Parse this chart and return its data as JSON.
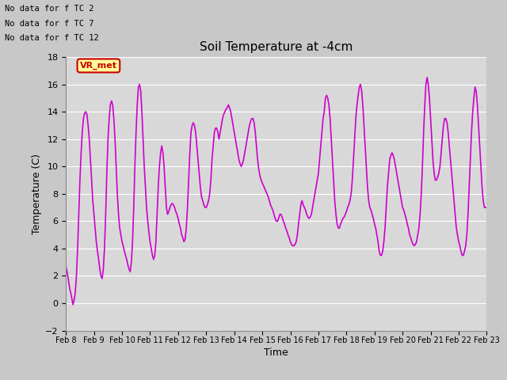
{
  "title": "Soil Temperature at -4cm",
  "xlabel": "Time",
  "ylabel": "Temperature (C)",
  "ylim": [
    -2,
    18
  ],
  "yticks": [
    -2,
    0,
    2,
    4,
    6,
    8,
    10,
    12,
    14,
    16,
    18
  ],
  "line_color": "#cc00cc",
  "line_width": 1.2,
  "fig_bg_color": "#c8c8c8",
  "plot_bg_color": "#d8d8d8",
  "legend_color": "#cc00cc",
  "no_data_texts": [
    "No data for f TC 2",
    "No data for f TC 7",
    "No data for f TC 12"
  ],
  "tooltip_text": "VR_met",
  "tooltip_bg": "#ffff99",
  "tooltip_border": "#cc0000",
  "tooltip_text_color": "#cc0000",
  "x_tick_labels": [
    "Feb 8",
    "Feb 9",
    "Feb 10",
    "Feb 11",
    "Feb 12",
    "Feb 13",
    "Feb 14",
    "Feb 15",
    "Feb 16",
    "Feb 17",
    "Feb 18",
    "Feb 19",
    "Feb 20",
    "Feb 21",
    "Feb 22",
    "Feb 23"
  ],
  "time_data": [
    0.0,
    0.042,
    0.083,
    0.125,
    0.167,
    0.208,
    0.25,
    0.292,
    0.333,
    0.375,
    0.417,
    0.458,
    0.5,
    0.542,
    0.583,
    0.625,
    0.667,
    0.708,
    0.75,
    0.792,
    0.833,
    0.875,
    0.917,
    0.958,
    1.0,
    1.042,
    1.083,
    1.125,
    1.167,
    1.208,
    1.25,
    1.292,
    1.333,
    1.375,
    1.417,
    1.458,
    1.5,
    1.542,
    1.583,
    1.625,
    1.667,
    1.708,
    1.75,
    1.792,
    1.833,
    1.875,
    1.917,
    1.958,
    2.0,
    2.042,
    2.083,
    2.125,
    2.167,
    2.208,
    2.25,
    2.292,
    2.333,
    2.375,
    2.417,
    2.458,
    2.5,
    2.542,
    2.583,
    2.625,
    2.667,
    2.708,
    2.75,
    2.792,
    2.833,
    2.875,
    2.917,
    2.958,
    3.0,
    3.042,
    3.083,
    3.125,
    3.167,
    3.208,
    3.25,
    3.292,
    3.333,
    3.375,
    3.417,
    3.458,
    3.5,
    3.542,
    3.583,
    3.625,
    3.667,
    3.708,
    3.75,
    3.792,
    3.833,
    3.875,
    3.917,
    3.958,
    4.0,
    4.042,
    4.083,
    4.125,
    4.167,
    4.208,
    4.25,
    4.292,
    4.333,
    4.375,
    4.417,
    4.458,
    4.5,
    4.542,
    4.583,
    4.625,
    4.667,
    4.708,
    4.75,
    4.792,
    4.833,
    4.875,
    4.917,
    4.958,
    5.0,
    5.042,
    5.083,
    5.125,
    5.167,
    5.208,
    5.25,
    5.292,
    5.333,
    5.375,
    5.417,
    5.458,
    5.5,
    5.542,
    5.583,
    5.625,
    5.667,
    5.708,
    5.75,
    5.792,
    5.833,
    5.875,
    5.917,
    5.958,
    6.0,
    6.042,
    6.083,
    6.125,
    6.167,
    6.208,
    6.25,
    6.292,
    6.333,
    6.375,
    6.417,
    6.458,
    6.5,
    6.542,
    6.583,
    6.625,
    6.667,
    6.708,
    6.75,
    6.792,
    6.833,
    6.875,
    6.917,
    6.958,
    7.0,
    7.042,
    7.083,
    7.125,
    7.167,
    7.208,
    7.25,
    7.292,
    7.333,
    7.375,
    7.417,
    7.458,
    7.5,
    7.542,
    7.583,
    7.625,
    7.667,
    7.708,
    7.75,
    7.792,
    7.833,
    7.875,
    7.917,
    7.958,
    8.0,
    8.042,
    8.083,
    8.125,
    8.167,
    8.208,
    8.25,
    8.292,
    8.333,
    8.375,
    8.417,
    8.458,
    8.5,
    8.542,
    8.583,
    8.625,
    8.667,
    8.708,
    8.75,
    8.792,
    8.833,
    8.875,
    8.917,
    8.958,
    9.0,
    9.042,
    9.083,
    9.125,
    9.167,
    9.208,
    9.25,
    9.292,
    9.333,
    9.375,
    9.417,
    9.458,
    9.5,
    9.542,
    9.583,
    9.625,
    9.667,
    9.708,
    9.75,
    9.792,
    9.833,
    9.875,
    9.917,
    9.958,
    10.0,
    10.042,
    10.083,
    10.125,
    10.167,
    10.208,
    10.25,
    10.292,
    10.333,
    10.375,
    10.417,
    10.458,
    10.5,
    10.542,
    10.583,
    10.625,
    10.667,
    10.708,
    10.75,
    10.792,
    10.833,
    10.875,
    10.917,
    10.958,
    11.0,
    11.042,
    11.083,
    11.125,
    11.167,
    11.208,
    11.25,
    11.292,
    11.333,
    11.375,
    11.417,
    11.458,
    11.5,
    11.542,
    11.583,
    11.625,
    11.667,
    11.708,
    11.75,
    11.792,
    11.833,
    11.875,
    11.917,
    11.958,
    12.0,
    12.042,
    12.083,
    12.125,
    12.167,
    12.208,
    12.25,
    12.292,
    12.333,
    12.375,
    12.417,
    12.458,
    12.5,
    12.542,
    12.583,
    12.625,
    12.667,
    12.708,
    12.75,
    12.792,
    12.833,
    12.875,
    12.917,
    12.958,
    13.0,
    13.042,
    13.083,
    13.125,
    13.167,
    13.208,
    13.25,
    13.292,
    13.333,
    13.375,
    13.417,
    13.458,
    13.5,
    13.542,
    13.583,
    13.625,
    13.667,
    13.708,
    13.75,
    13.792,
    13.833,
    13.875,
    13.917,
    13.958,
    14.0,
    14.042,
    14.083,
    14.125,
    14.167,
    14.208,
    14.25,
    14.292,
    14.333,
    14.375,
    14.417,
    14.458,
    14.5,
    14.542,
    14.583,
    14.625,
    14.667,
    14.708,
    14.75,
    14.792,
    14.833,
    14.875,
    14.917,
    14.958,
    15.0
  ],
  "temp_data": [
    2.7,
    2.3,
    1.8,
    1.2,
    0.8,
    0.4,
    -0.1,
    0.2,
    0.8,
    2.0,
    4.0,
    6.5,
    9.0,
    11.0,
    12.5,
    13.5,
    13.9,
    14.0,
    13.8,
    13.0,
    12.0,
    10.5,
    9.0,
    7.5,
    6.5,
    5.5,
    4.5,
    3.8,
    3.2,
    2.5,
    2.0,
    1.8,
    2.5,
    4.0,
    6.5,
    9.5,
    12.0,
    13.5,
    14.5,
    14.8,
    14.5,
    13.5,
    12.0,
    10.0,
    8.0,
    6.5,
    5.5,
    5.0,
    4.5,
    4.2,
    3.8,
    3.5,
    3.2,
    2.8,
    2.5,
    2.3,
    3.0,
    4.5,
    7.0,
    10.0,
    12.5,
    14.5,
    15.8,
    16.0,
    15.5,
    14.0,
    12.0,
    10.0,
    8.5,
    7.0,
    6.0,
    5.2,
    4.5,
    4.0,
    3.5,
    3.2,
    3.5,
    4.5,
    6.5,
    8.5,
    10.0,
    11.0,
    11.5,
    11.0,
    10.0,
    8.5,
    7.0,
    6.5,
    6.7,
    7.0,
    7.2,
    7.3,
    7.2,
    7.0,
    6.7,
    6.5,
    6.2,
    5.8,
    5.5,
    5.0,
    4.8,
    4.5,
    4.7,
    5.5,
    7.0,
    9.0,
    11.0,
    12.5,
    13.0,
    13.2,
    13.0,
    12.5,
    11.5,
    10.5,
    9.5,
    8.5,
    7.8,
    7.5,
    7.2,
    7.0,
    7.0,
    7.2,
    7.5,
    8.0,
    9.0,
    10.5,
    11.5,
    12.5,
    12.8,
    12.8,
    12.5,
    12.0,
    12.5,
    13.0,
    13.5,
    13.8,
    14.0,
    14.2,
    14.3,
    14.5,
    14.3,
    14.0,
    13.5,
    13.0,
    12.5,
    12.0,
    11.5,
    11.0,
    10.5,
    10.2,
    10.0,
    10.2,
    10.5,
    11.0,
    11.5,
    12.0,
    12.5,
    13.0,
    13.3,
    13.5,
    13.5,
    13.2,
    12.5,
    11.5,
    10.5,
    9.8,
    9.3,
    9.0,
    8.8,
    8.6,
    8.4,
    8.2,
    8.0,
    7.8,
    7.5,
    7.2,
    7.0,
    6.8,
    6.5,
    6.2,
    6.0,
    6.0,
    6.2,
    6.5,
    6.5,
    6.3,
    6.0,
    5.8,
    5.5,
    5.3,
    5.0,
    4.8,
    4.5,
    4.3,
    4.2,
    4.2,
    4.3,
    4.5,
    5.0,
    5.8,
    6.5,
    7.2,
    7.5,
    7.2,
    7.0,
    6.8,
    6.5,
    6.3,
    6.2,
    6.3,
    6.5,
    7.0,
    7.5,
    8.0,
    8.5,
    9.0,
    9.5,
    10.5,
    11.5,
    12.5,
    13.5,
    14.0,
    15.0,
    15.2,
    15.0,
    14.5,
    13.5,
    12.0,
    10.5,
    9.0,
    7.5,
    6.5,
    5.8,
    5.5,
    5.5,
    5.8,
    6.0,
    6.2,
    6.3,
    6.5,
    6.7,
    7.0,
    7.2,
    7.5,
    8.0,
    9.0,
    10.5,
    12.0,
    13.5,
    14.5,
    15.2,
    15.8,
    16.0,
    15.5,
    14.5,
    13.0,
    11.5,
    10.0,
    8.5,
    7.5,
    7.0,
    6.8,
    6.5,
    6.2,
    5.8,
    5.5,
    5.0,
    4.5,
    3.8,
    3.5,
    3.5,
    3.8,
    4.5,
    5.5,
    7.0,
    8.5,
    9.5,
    10.5,
    10.8,
    11.0,
    10.8,
    10.5,
    10.0,
    9.5,
    9.0,
    8.5,
    8.0,
    7.5,
    7.0,
    6.8,
    6.5,
    6.2,
    5.8,
    5.5,
    5.0,
    4.8,
    4.5,
    4.3,
    4.2,
    4.3,
    4.5,
    5.0,
    5.5,
    6.5,
    8.0,
    10.0,
    12.5,
    14.5,
    16.0,
    16.5,
    16.0,
    15.0,
    13.5,
    12.0,
    10.5,
    9.5,
    9.0,
    9.0,
    9.2,
    9.5,
    10.0,
    11.0,
    12.0,
    13.0,
    13.5,
    13.5,
    13.2,
    12.5,
    11.5,
    10.5,
    9.5,
    8.5,
    7.5,
    6.5,
    5.5,
    5.0,
    4.5,
    4.2,
    3.8,
    3.5,
    3.5,
    3.8,
    4.2,
    5.0,
    6.5,
    8.5,
    10.5,
    12.5,
    14.0,
    15.0,
    15.8,
    15.5,
    14.5,
    13.0,
    11.5,
    10.0,
    8.5,
    7.5,
    7.0,
    7.0,
    7.0
  ]
}
